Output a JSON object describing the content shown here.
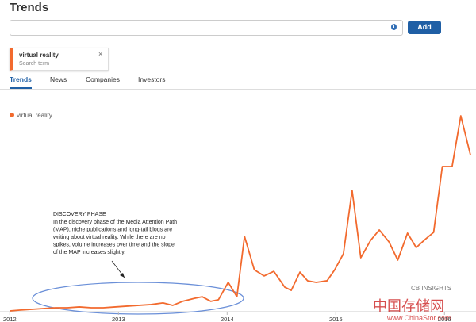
{
  "header": {
    "title": "Trends"
  },
  "search": {
    "button": "Add",
    "info_icon": "i"
  },
  "tags": [
    {
      "label": "virtual reality",
      "sublabel": "Search term",
      "close": "×"
    }
  ],
  "tabs": [
    "Trends",
    "News",
    "Companies",
    "Investors"
  ],
  "annotation": {
    "title": "DISCOVERY PHASE",
    "lines": [
      "In the discovery phase of the Media Attention Path",
      "(MAP), niche publications and long-tail blogs are",
      "writing about virtual reality.  While there are no",
      "spikes, volume increases over time and the slope",
      "of the MAP increases slightly."
    ]
  },
  "watermark": {
    "logo": "CB INSIGHTS",
    "site_cn": "中国存储网",
    "site_url": "www.ChinaStor.com"
  },
  "chart_data": {
    "type": "line",
    "x": [
      2012.0,
      2012.09,
      2012.2,
      2012.31,
      2012.42,
      2012.53,
      2012.64,
      2012.75,
      2012.86,
      2012.97,
      2013.08,
      2013.19,
      2013.3,
      2013.41,
      2013.5,
      2013.59,
      2013.7,
      2013.77,
      2013.85,
      2013.92,
      2014.01,
      2014.09,
      2014.16,
      2014.25,
      2014.34,
      2014.43,
      2014.53,
      2014.59,
      2014.67,
      2014.74,
      2014.82,
      2014.92,
      2014.99,
      2015.07,
      2015.15,
      2015.23,
      2015.32,
      2015.4,
      2015.49,
      2015.57,
      2015.66,
      2015.74,
      2015.82,
      2015.9,
      2015.98,
      2016.07,
      2016.15,
      2016.24
    ],
    "series": [
      {
        "name": "virtual reality",
        "color": "#f26a2e",
        "values": [
          0,
          0.4,
          0.8,
          1.2,
          1.6,
          1.6,
          2,
          1.6,
          1.6,
          2,
          2.4,
          2.8,
          3.2,
          4,
          2.8,
          4.8,
          6.3,
          7.1,
          4.8,
          5.6,
          14.3,
          7.1,
          37.3,
          20.6,
          17.5,
          19.8,
          11.9,
          10.3,
          19.4,
          15.1,
          14.3,
          15.1,
          20.6,
          28.6,
          60.3,
          26.6,
          35.3,
          40.5,
          34.5,
          25.4,
          38.9,
          31.7,
          35.7,
          39.3,
          72.2,
          72.2,
          97.6,
          77.8
        ]
      }
    ],
    "xlim": [
      2011.91,
      2016.29
    ],
    "xticks": [
      2012,
      2013,
      2014,
      2015,
      2016
    ],
    "ylim": [
      0,
      100
    ]
  }
}
